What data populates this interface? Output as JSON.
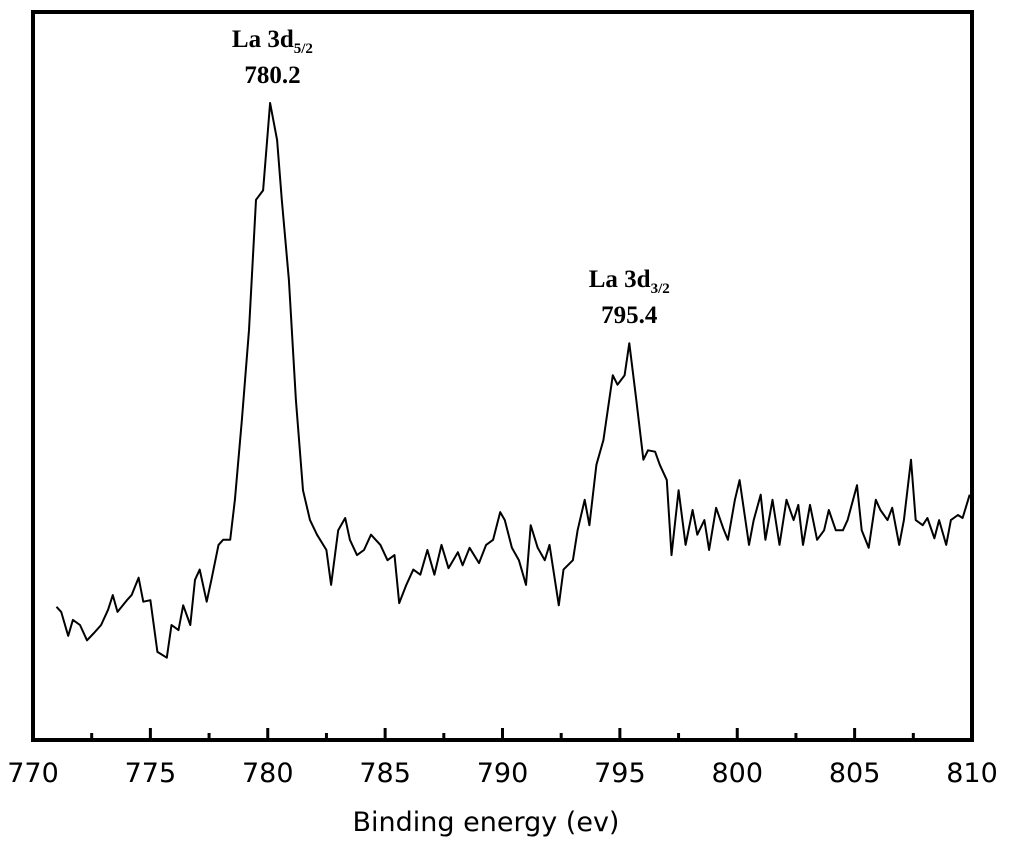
{
  "chart_data": {
    "type": "line",
    "xlabel": "Binding energy (ev)",
    "color": "#000000",
    "x": [
      771.0,
      771.2,
      771.5,
      771.7,
      772.0,
      772.3,
      772.6,
      772.9,
      773.2,
      773.4,
      773.6,
      774.0,
      774.2,
      774.5,
      774.7,
      775.0,
      775.3,
      775.7,
      775.9,
      776.2,
      776.4,
      776.7,
      776.9,
      777.1,
      777.4,
      777.6,
      777.9,
      778.1,
      778.4,
      778.6,
      778.9,
      779.2,
      779.5,
      779.8,
      780.1,
      780.4,
      780.6,
      780.9,
      781.2,
      781.5,
      781.8,
      782.1,
      782.5,
      782.7,
      783.0,
      783.3,
      783.5,
      783.8,
      784.1,
      784.4,
      784.8,
      785.1,
      785.4,
      785.6,
      785.9,
      786.2,
      786.5,
      786.8,
      787.1,
      787.4,
      787.7,
      788.1,
      788.3,
      788.6,
      789.0,
      789.3,
      789.6,
      789.9,
      790.1,
      790.4,
      790.7,
      791.0,
      791.2,
      791.5,
      791.8,
      792.0,
      792.4,
      792.6,
      793.0,
      793.2,
      793.5,
      793.7,
      794.0,
      794.3,
      794.7,
      794.9,
      795.2,
      795.4,
      795.7,
      796.0,
      796.2,
      796.5,
      796.7,
      797.0,
      797.2,
      797.5,
      797.8,
      798.1,
      798.3,
      798.6,
      798.8,
      799.1,
      799.4,
      799.6,
      799.9,
      800.1,
      800.5,
      800.7,
      801.0,
      801.2,
      801.5,
      801.8,
      802.1,
      802.4,
      802.6,
      802.8,
      803.1,
      803.4,
      803.7,
      803.9,
      804.2,
      804.5,
      804.7,
      805.1,
      805.3,
      805.6,
      805.9,
      806.1,
      806.4,
      806.6,
      806.9,
      807.1,
      807.4,
      807.6,
      807.9,
      808.1,
      808.4,
      808.6,
      808.9,
      809.1,
      809.4,
      809.6,
      809.9
    ],
    "values": [
      18.3,
      17.6,
      14.3,
      16.5,
      15.8,
      13.7,
      14.7,
      15.8,
      17.9,
      19.9,
      17.6,
      19.2,
      19.9,
      22.3,
      19.0,
      19.2,
      12.1,
      11.3,
      15.8,
      15.1,
      18.5,
      15.8,
      22.0,
      23.4,
      19.0,
      22.0,
      26.8,
      27.5,
      27.5,
      33.0,
      44.0,
      56.3,
      74.2,
      75.5,
      87.5,
      82.4,
      74.2,
      63.2,
      46.7,
      34.3,
      30.2,
      28.2,
      26.1,
      21.3,
      28.8,
      30.5,
      27.5,
      25.4,
      26.1,
      28.2,
      26.8,
      24.7,
      25.4,
      18.8,
      21.3,
      23.4,
      22.7,
      26.1,
      22.7,
      26.8,
      23.6,
      25.8,
      24.0,
      26.4,
      24.3,
      26.8,
      27.5,
      31.3,
      30.2,
      26.4,
      24.7,
      21.3,
      29.5,
      26.4,
      24.7,
      26.8,
      18.5,
      23.4,
      24.7,
      28.8,
      33.0,
      29.5,
      37.8,
      41.2,
      50.1,
      48.8,
      50.1,
      54.5,
      46.7,
      38.5,
      39.8,
      39.6,
      37.8,
      35.7,
      25.4,
      34.3,
      26.8,
      31.6,
      28.2,
      30.2,
      26.1,
      31.9,
      29.1,
      27.5,
      33.0,
      35.7,
      26.8,
      30.2,
      33.7,
      27.5,
      33.0,
      26.8,
      33.0,
      30.2,
      32.3,
      26.8,
      32.3,
      27.5,
      28.8,
      31.6,
      28.8,
      28.8,
      30.2,
      35.0,
      28.8,
      26.4,
      33.0,
      31.6,
      30.2,
      31.9,
      26.8,
      30.2,
      38.5,
      30.2,
      29.5,
      30.5,
      27.7,
      30.2,
      26.8,
      30.2,
      30.9,
      30.5,
      33.7
    ],
    "xlim": [
      770,
      810
    ],
    "xticks": [
      770,
      775,
      780,
      785,
      790,
      795,
      800,
      805,
      810
    ],
    "xminor_ticks": [
      772.5,
      777.5,
      782.5,
      787.5,
      792.5,
      797.5,
      802.5,
      807.5
    ],
    "ylim": [
      0,
      100
    ],
    "annotations": [
      {
        "label": "La 3d",
        "subscript": "5/2",
        "x": 780.2
      },
      {
        "label": "La 3d",
        "subscript": "3/2",
        "x": 795.4
      }
    ]
  }
}
